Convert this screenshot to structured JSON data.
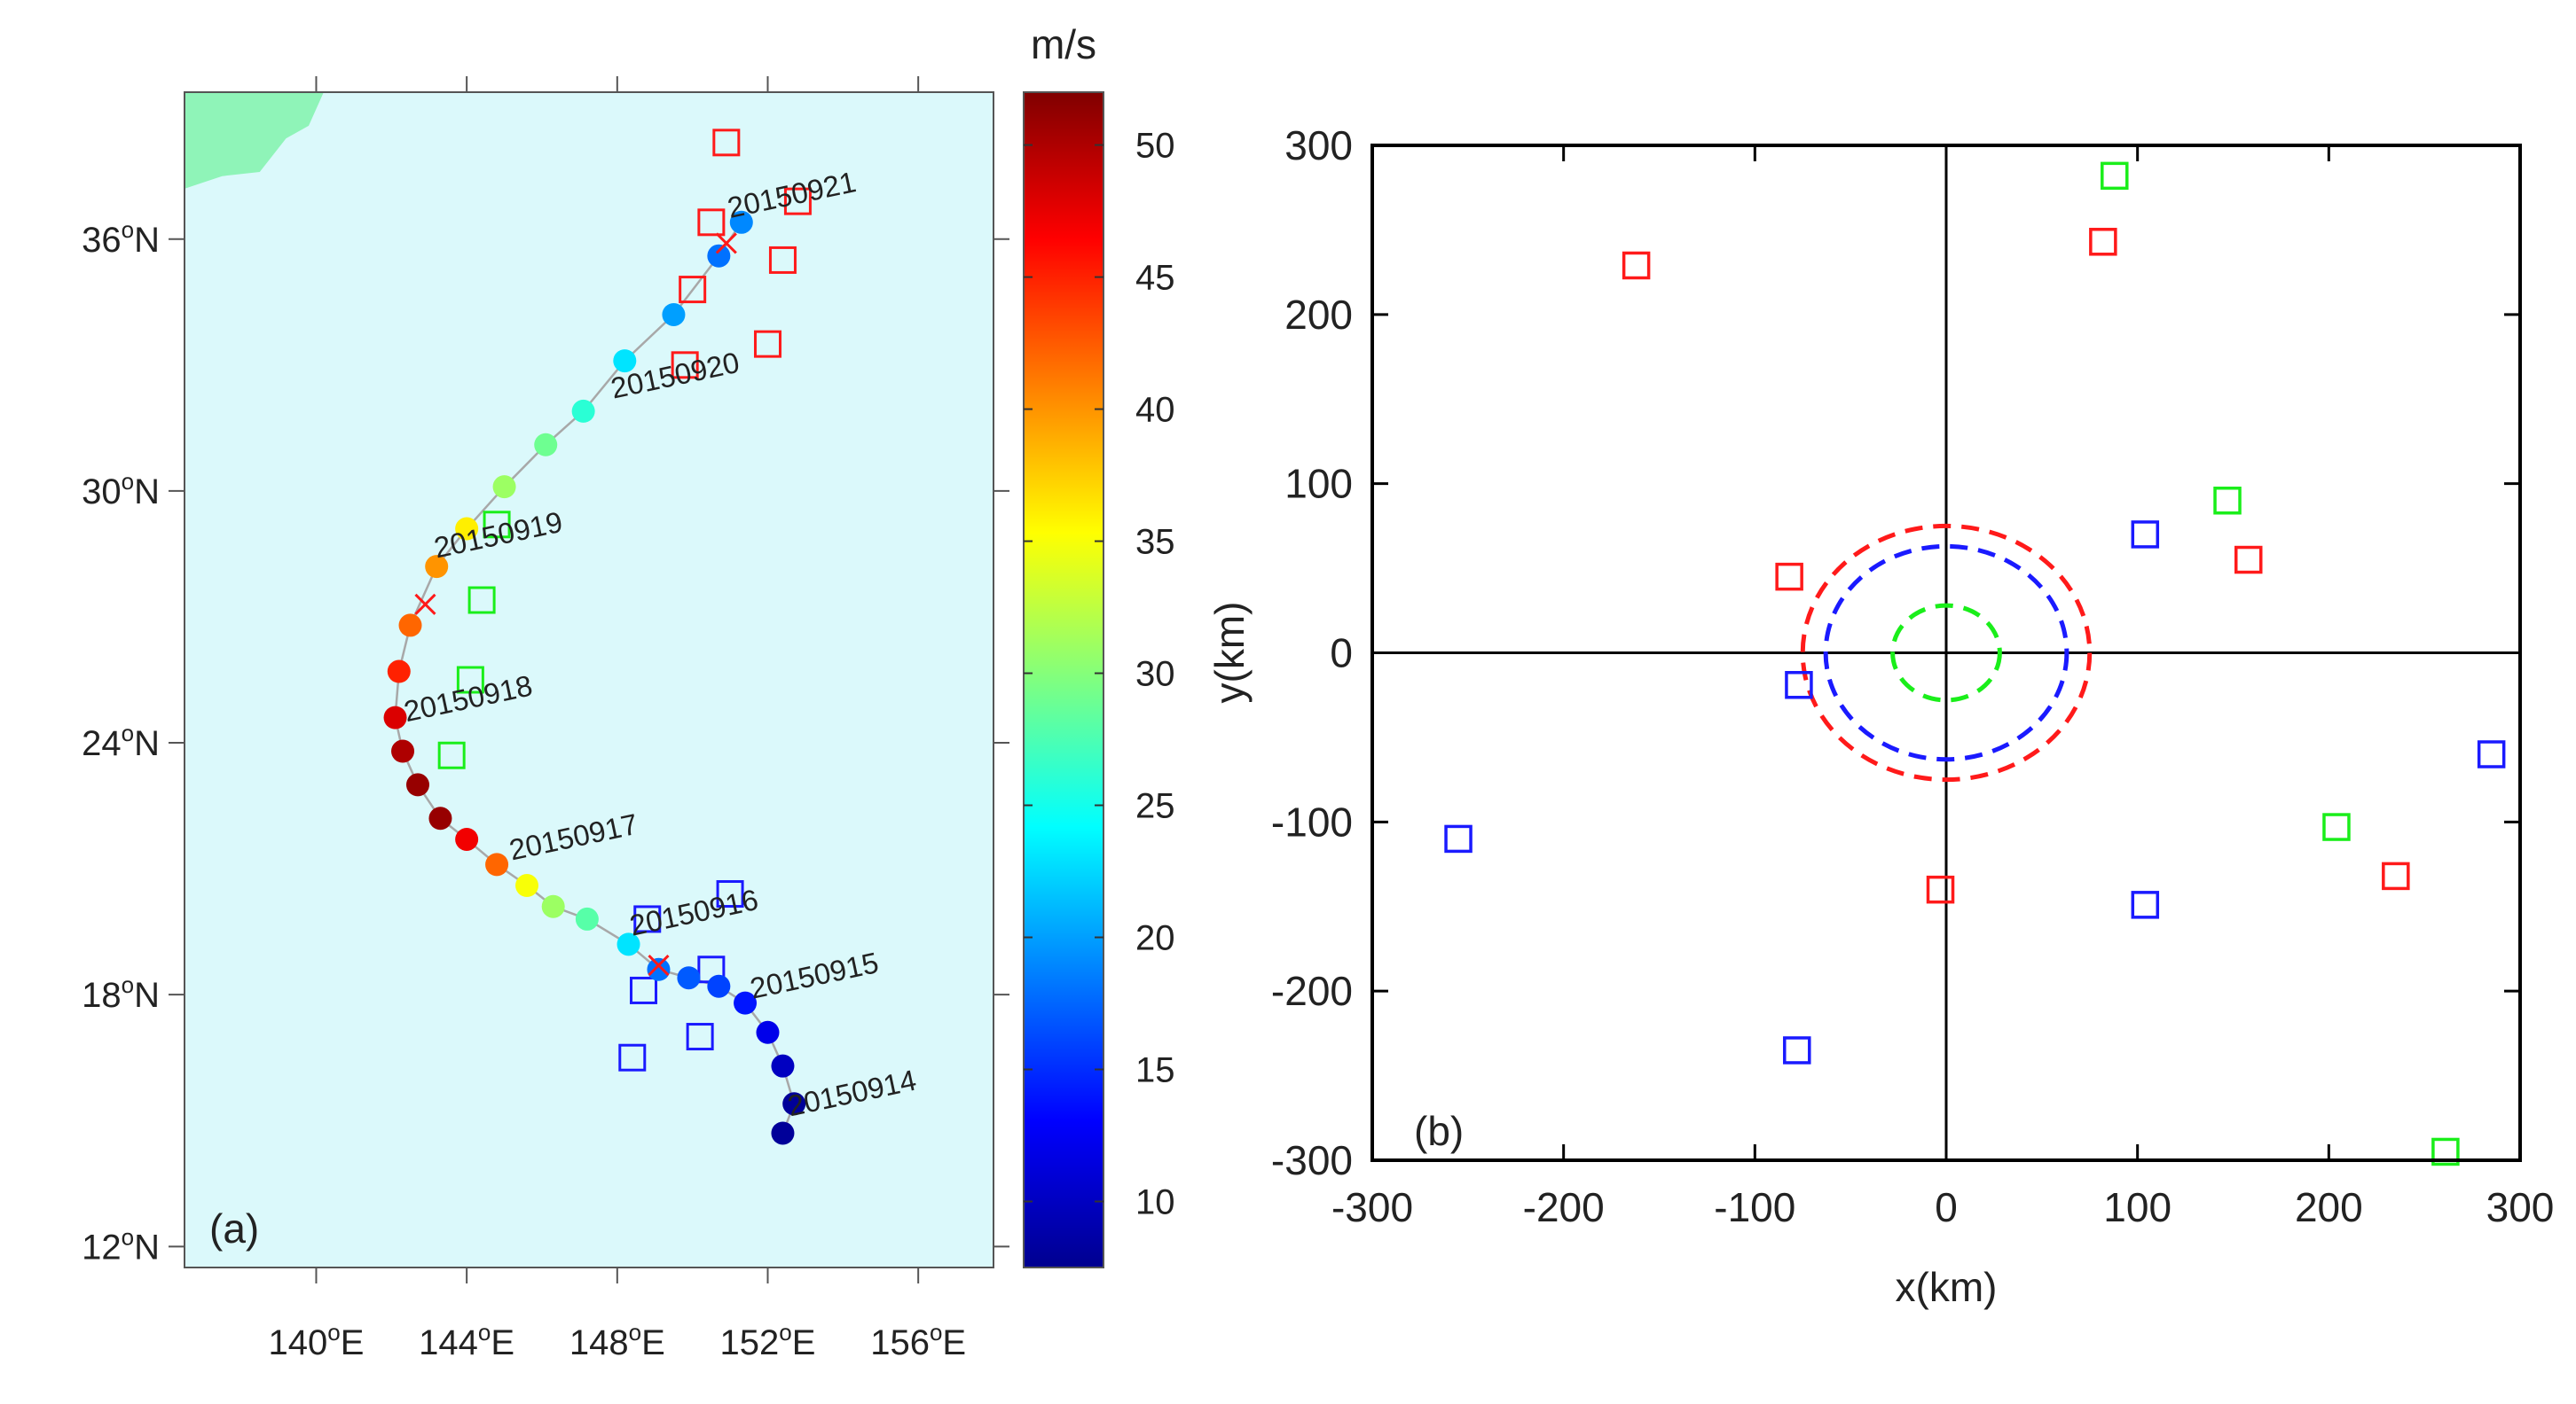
{
  "colors": {
    "ocean": "#dbf9fb",
    "land": "#8ff4b8",
    "track": "#a8a8a8",
    "red": "#ff1a1a",
    "blue": "#1a1aff",
    "green": "#1aee1a"
  },
  "chart_data": [
    {
      "id": "a",
      "type": "scatter",
      "panel_label": "(a)",
      "title": "",
      "xlabel": "",
      "ylabel": "",
      "xlim": [
        136.5,
        158
      ],
      "ylim": [
        11.5,
        39.5
      ],
      "x_ticks": [
        {
          "value": 140,
          "num": "140",
          "sup": "o",
          "suffix": "E"
        },
        {
          "value": 144,
          "num": "144",
          "sup": "o",
          "suffix": "E"
        },
        {
          "value": 148,
          "num": "148",
          "sup": "o",
          "suffix": "E"
        },
        {
          "value": 152,
          "num": "152",
          "sup": "o",
          "suffix": "E"
        },
        {
          "value": 156,
          "num": "156",
          "sup": "o",
          "suffix": "E"
        }
      ],
      "y_ticks": [
        {
          "value": 12,
          "num": "12",
          "sup": "o",
          "suffix": "N"
        },
        {
          "value": 18,
          "num": "18",
          "sup": "o",
          "suffix": "N"
        },
        {
          "value": 24,
          "num": "24",
          "sup": "o",
          "suffix": "N"
        },
        {
          "value": 30,
          "num": "30",
          "sup": "o",
          "suffix": "N"
        },
        {
          "value": 36,
          "num": "36",
          "sup": "o",
          "suffix": "N"
        }
      ],
      "land": [
        [
          136.5,
          37.2
        ],
        [
          137.5,
          37.5
        ],
        [
          138.5,
          37.6
        ],
        [
          139.2,
          38.4
        ],
        [
          139.8,
          38.7
        ],
        [
          140.2,
          39.5
        ],
        [
          136.5,
          39.5
        ]
      ],
      "colorbar": {
        "label": "m/s",
        "min": 7.5,
        "max": 52,
        "ticks": [
          10,
          15,
          20,
          25,
          30,
          35,
          40,
          45,
          50
        ]
      },
      "track": [
        {
          "lon": 152.4,
          "lat": 14.7,
          "wind": 8
        },
        {
          "lon": 152.7,
          "lat": 15.4,
          "wind": 8
        },
        {
          "lon": 152.4,
          "lat": 16.3,
          "wind": 10
        },
        {
          "lon": 152.0,
          "lat": 17.1,
          "wind": 12
        },
        {
          "lon": 151.4,
          "lat": 17.8,
          "wind": 14
        },
        {
          "lon": 150.7,
          "lat": 18.2,
          "wind": 16
        },
        {
          "lon": 149.9,
          "lat": 18.4,
          "wind": 17
        },
        {
          "lon": 149.1,
          "lat": 18.6,
          "wind": 18
        },
        {
          "lon": 148.3,
          "lat": 19.2,
          "wind": 23
        },
        {
          "lon": 147.2,
          "lat": 19.8,
          "wind": 28
        },
        {
          "lon": 146.3,
          "lat": 20.1,
          "wind": 31
        },
        {
          "lon": 145.6,
          "lat": 20.6,
          "wind": 35
        },
        {
          "lon": 144.8,
          "lat": 21.1,
          "wind": 42
        },
        {
          "lon": 144.0,
          "lat": 21.7,
          "wind": 47
        },
        {
          "lon": 143.3,
          "lat": 22.2,
          "wind": 51
        },
        {
          "lon": 142.7,
          "lat": 23.0,
          "wind": 51
        },
        {
          "lon": 142.3,
          "lat": 23.8,
          "wind": 50
        },
        {
          "lon": 142.1,
          "lat": 24.6,
          "wind": 48
        },
        {
          "lon": 142.2,
          "lat": 25.7,
          "wind": 45
        },
        {
          "lon": 142.5,
          "lat": 26.8,
          "wind": 42
        },
        {
          "lon": 143.2,
          "lat": 28.2,
          "wind": 40
        },
        {
          "lon": 144.0,
          "lat": 29.1,
          "wind": 36
        },
        {
          "lon": 145.0,
          "lat": 30.1,
          "wind": 31
        },
        {
          "lon": 146.1,
          "lat": 31.1,
          "wind": 29
        },
        {
          "lon": 147.1,
          "lat": 31.9,
          "wind": 26
        },
        {
          "lon": 148.2,
          "lat": 33.1,
          "wind": 23
        },
        {
          "lon": 149.5,
          "lat": 34.2,
          "wind": 20
        },
        {
          "lon": 150.7,
          "lat": 35.6,
          "wind": 18
        },
        {
          "lon": 151.3,
          "lat": 36.4,
          "wind": 19
        }
      ],
      "crosses": [
        {
          "lon": 150.9,
          "lat": 35.9
        },
        {
          "lon": 142.9,
          "lat": 27.3
        },
        {
          "lon": 149.1,
          "lat": 18.7
        }
      ],
      "date_labels": [
        {
          "text": "20150914",
          "lon": 152.6,
          "lat": 15.1
        },
        {
          "text": "20150915",
          "lon": 151.6,
          "lat": 17.9
        },
        {
          "text": "20150916",
          "lon": 148.4,
          "lat": 19.4
        },
        {
          "text": "20150917",
          "lon": 145.2,
          "lat": 21.2
        },
        {
          "text": "20150918",
          "lon": 142.4,
          "lat": 24.5
        },
        {
          "text": "20150919",
          "lon": 143.2,
          "lat": 28.4
        },
        {
          "text": "20150920",
          "lon": 147.9,
          "lat": 32.2
        },
        {
          "text": "20150921",
          "lon": 151.0,
          "lat": 36.5
        }
      ],
      "stations": [
        {
          "lon": 150.9,
          "lat": 38.3,
          "color": "red"
        },
        {
          "lon": 152.8,
          "lat": 36.9,
          "color": "red"
        },
        {
          "lon": 150.5,
          "lat": 36.4,
          "color": "red"
        },
        {
          "lon": 152.4,
          "lat": 35.5,
          "color": "red"
        },
        {
          "lon": 150.0,
          "lat": 34.8,
          "color": "red"
        },
        {
          "lon": 152.0,
          "lat": 33.5,
          "color": "red"
        },
        {
          "lon": 149.8,
          "lat": 33.0,
          "color": "red"
        },
        {
          "lon": 144.8,
          "lat": 29.2,
          "color": "green"
        },
        {
          "lon": 144.4,
          "lat": 27.4,
          "color": "green"
        },
        {
          "lon": 144.1,
          "lat": 25.5,
          "color": "green"
        },
        {
          "lon": 143.6,
          "lat": 23.7,
          "color": "green"
        },
        {
          "lon": 151.0,
          "lat": 20.4,
          "color": "blue"
        },
        {
          "lon": 148.8,
          "lat": 19.8,
          "color": "blue"
        },
        {
          "lon": 150.5,
          "lat": 18.6,
          "color": "blue"
        },
        {
          "lon": 148.7,
          "lat": 18.1,
          "color": "blue"
        },
        {
          "lon": 150.2,
          "lat": 17.0,
          "color": "blue"
        },
        {
          "lon": 148.4,
          "lat": 16.5,
          "color": "blue"
        }
      ]
    },
    {
      "id": "b",
      "type": "scatter",
      "panel_label": "(b)",
      "title": "",
      "xlabel": "x(km)",
      "ylabel": "y(km)",
      "xlim": [
        -300,
        300
      ],
      "ylim": [
        -300,
        300
      ],
      "x_ticks": [
        {
          "value": -300,
          "label": "-300"
        },
        {
          "value": -200,
          "label": "-200"
        },
        {
          "value": -100,
          "label": "-100"
        },
        {
          "value": 0,
          "label": "0"
        },
        {
          "value": 100,
          "label": "100"
        },
        {
          "value": 200,
          "label": "200"
        },
        {
          "value": 300,
          "label": "300"
        }
      ],
      "y_ticks": [
        {
          "value": -300,
          "label": "-300"
        },
        {
          "value": -200,
          "label": "-200"
        },
        {
          "value": -100,
          "label": "-100"
        },
        {
          "value": 0,
          "label": "0"
        },
        {
          "value": 100,
          "label": "100"
        },
        {
          "value": 200,
          "label": "200"
        },
        {
          "value": 300,
          "label": "300"
        }
      ],
      "circles": [
        {
          "radius": 75,
          "color": "red"
        },
        {
          "radius": 63,
          "color": "blue"
        },
        {
          "radius": 28,
          "color": "green"
        }
      ],
      "squares": [
        {
          "x": 88,
          "y": 282,
          "color": "green"
        },
        {
          "x": -162,
          "y": 229,
          "color": "red"
        },
        {
          "x": 82,
          "y": 243,
          "color": "red"
        },
        {
          "x": 147,
          "y": 90,
          "color": "green"
        },
        {
          "x": 104,
          "y": 70,
          "color": "blue"
        },
        {
          "x": 158,
          "y": 55,
          "color": "red"
        },
        {
          "x": -82,
          "y": 45,
          "color": "red"
        },
        {
          "x": -77,
          "y": -19,
          "color": "blue"
        },
        {
          "x": 285,
          "y": -60,
          "color": "blue"
        },
        {
          "x": 204,
          "y": -103,
          "color": "green"
        },
        {
          "x": 235,
          "y": -132,
          "color": "red"
        },
        {
          "x": -255,
          "y": -110,
          "color": "blue"
        },
        {
          "x": -3,
          "y": -140,
          "color": "red"
        },
        {
          "x": 104,
          "y": -149,
          "color": "blue"
        },
        {
          "x": -78,
          "y": -235,
          "color": "blue"
        },
        {
          "x": 261,
          "y": -295,
          "color": "green"
        }
      ]
    }
  ]
}
